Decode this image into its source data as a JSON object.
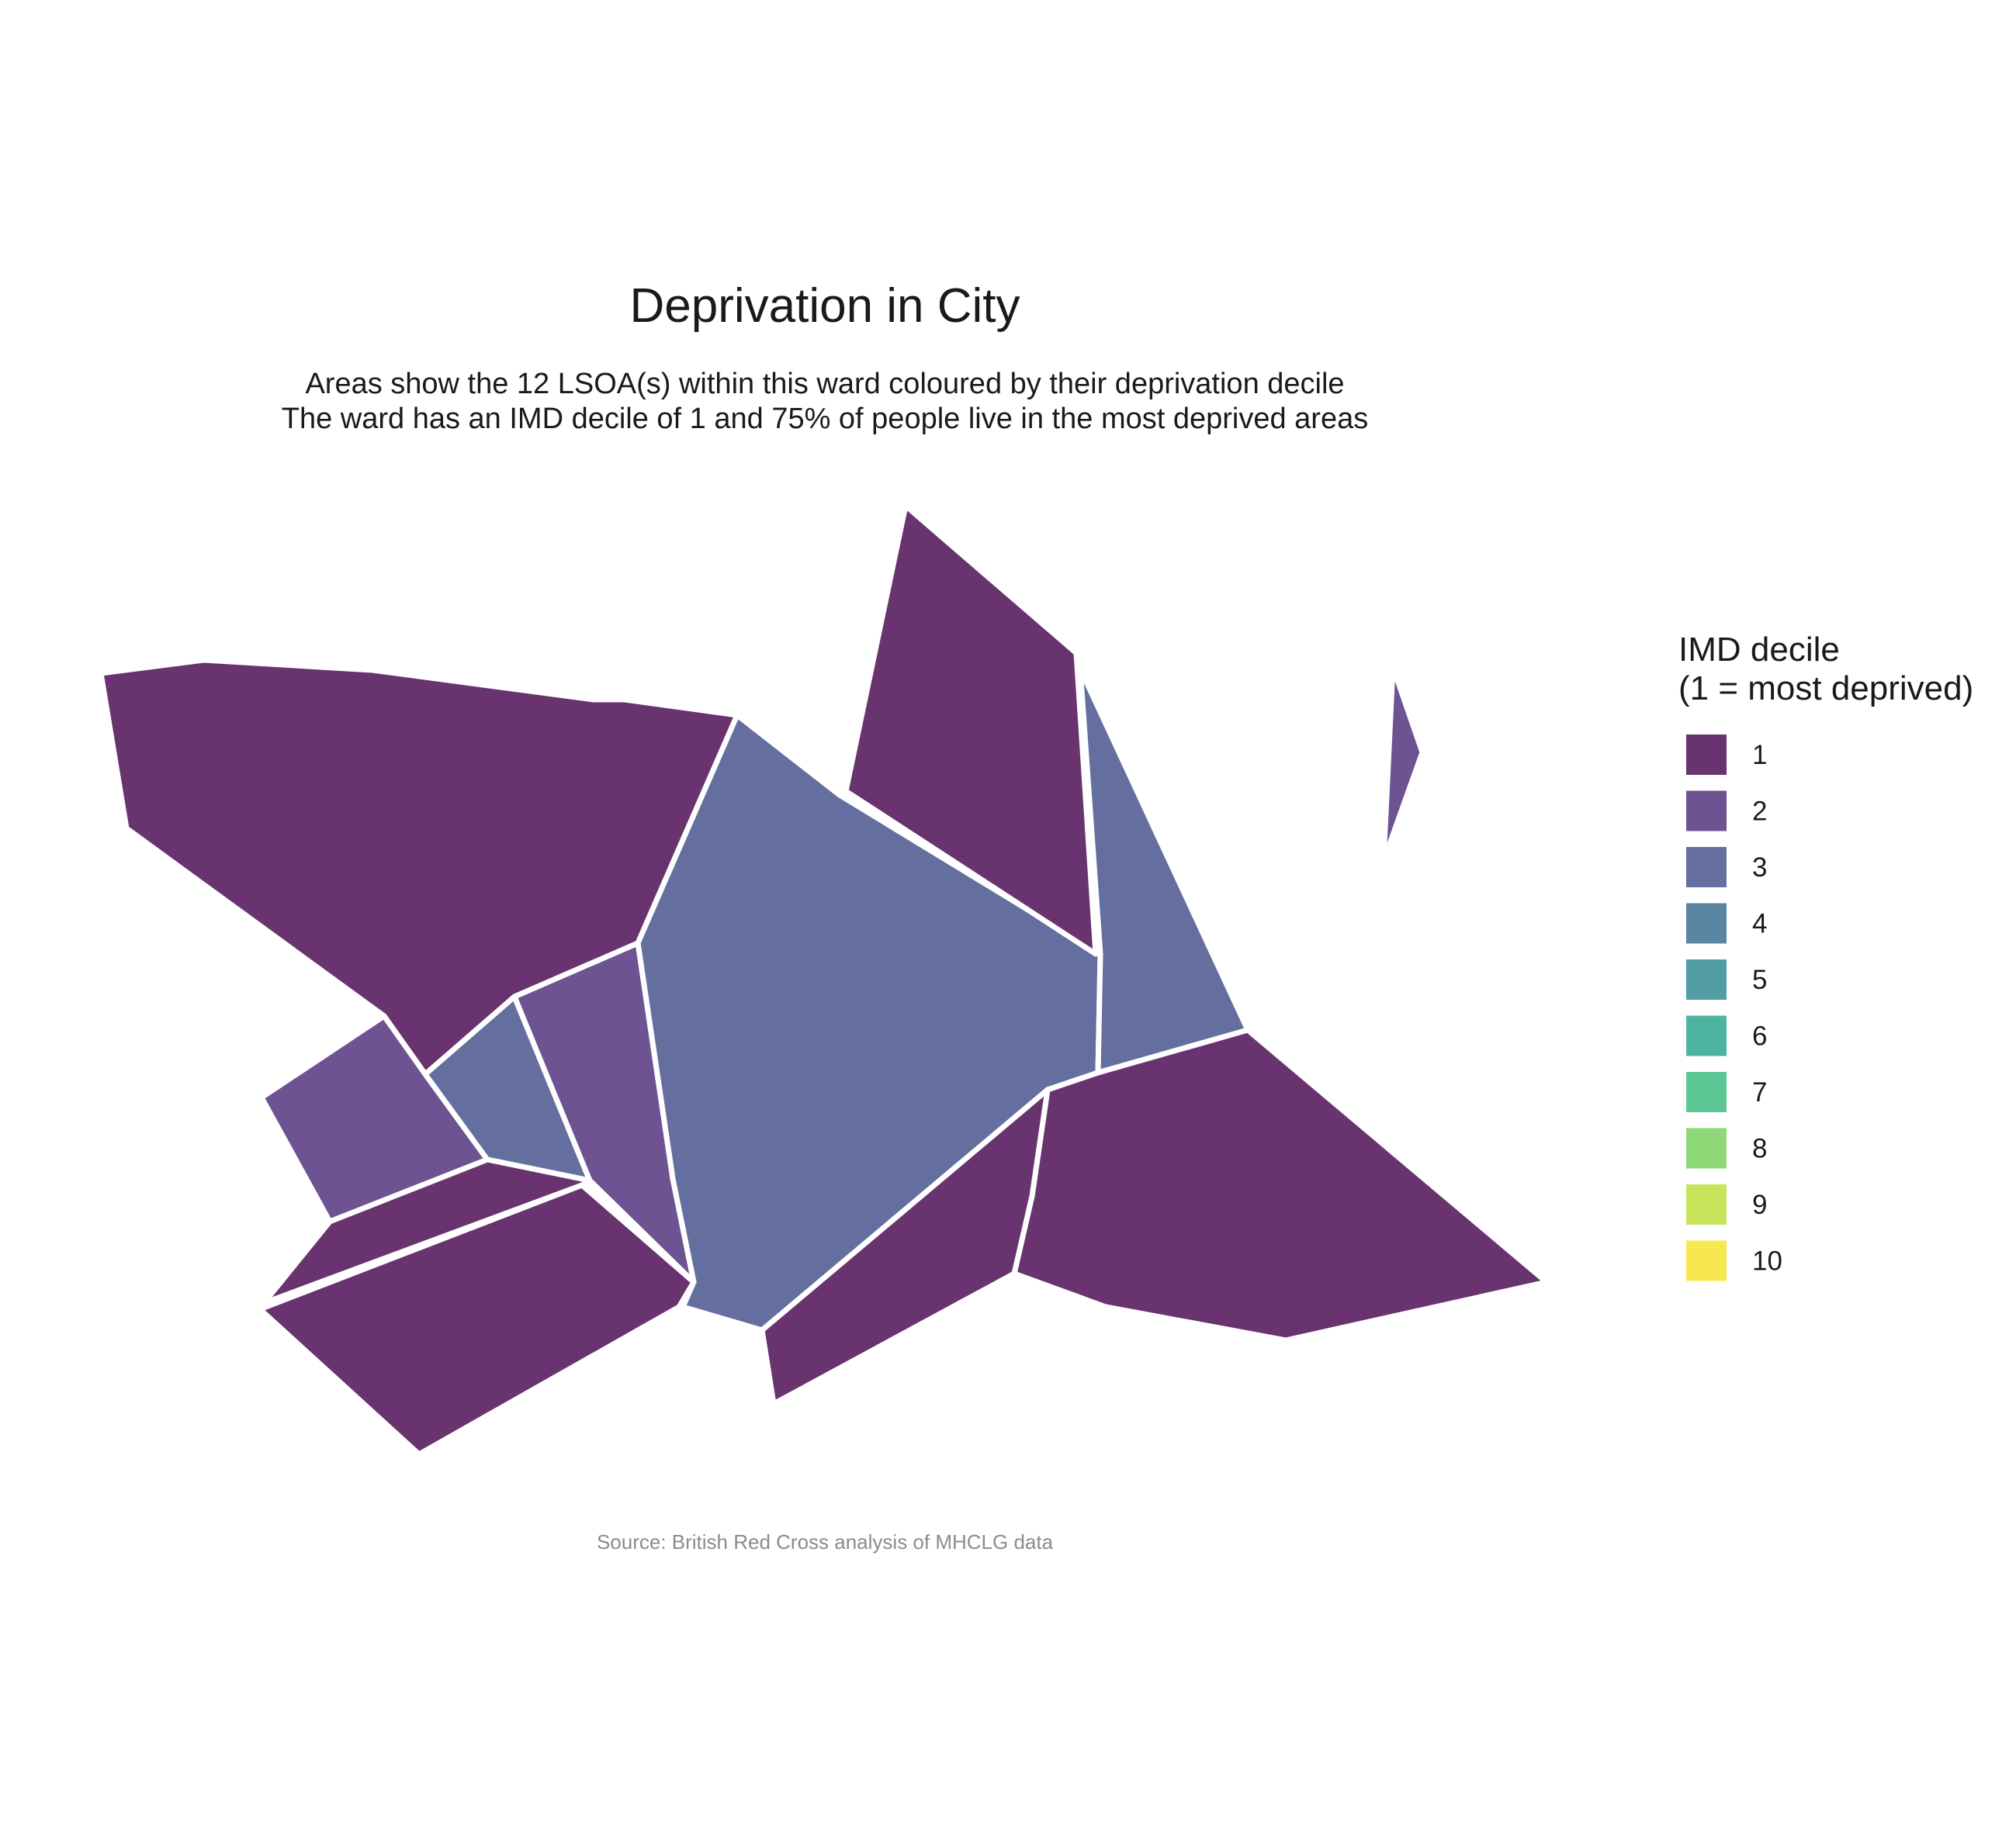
{
  "title": "Deprivation in City",
  "subtitle_lines": [
    "Areas show the 12 LSOA(s) within this ward coloured by their deprivation decile",
    "The ward has an IMD decile of 1 and 75% of people live in the most deprived areas"
  ],
  "caption": "Source: British Red Cross analysis of MHCLG data",
  "legend": {
    "title_lines": [
      "IMD decile",
      "(1 = most deprived)"
    ],
    "items": [
      {
        "label": "1",
        "color": "#68336f"
      },
      {
        "label": "2",
        "color": "#6d5392"
      },
      {
        "label": "3",
        "color": "#646f9f"
      },
      {
        "label": "4",
        "color": "#5a86a3"
      },
      {
        "label": "5",
        "color": "#529da4"
      },
      {
        "label": "6",
        "color": "#4fb3a2"
      },
      {
        "label": "7",
        "color": "#5ec796"
      },
      {
        "label": "8",
        "color": "#8ed878"
      },
      {
        "label": "9",
        "color": "#c6e35a"
      },
      {
        "label": "10",
        "color": "#f8e850"
      }
    ]
  },
  "areas": [
    {
      "name": "north-west",
      "decile": 1
    },
    {
      "name": "central",
      "decile": 3
    },
    {
      "name": "north",
      "decile": 1
    },
    {
      "name": "north-east-strip",
      "decile": 3
    },
    {
      "name": "east-sliver",
      "decile": 2
    },
    {
      "name": "south-east",
      "decile": 1
    },
    {
      "name": "south-centre-strip",
      "decile": 1
    },
    {
      "name": "west-small",
      "decile": 2
    },
    {
      "name": "inner-west",
      "decile": 3
    },
    {
      "name": "centre-west-strip",
      "decile": 2
    },
    {
      "name": "south-west-band",
      "decile": 1
    },
    {
      "name": "south-west",
      "decile": 1
    }
  ]
}
